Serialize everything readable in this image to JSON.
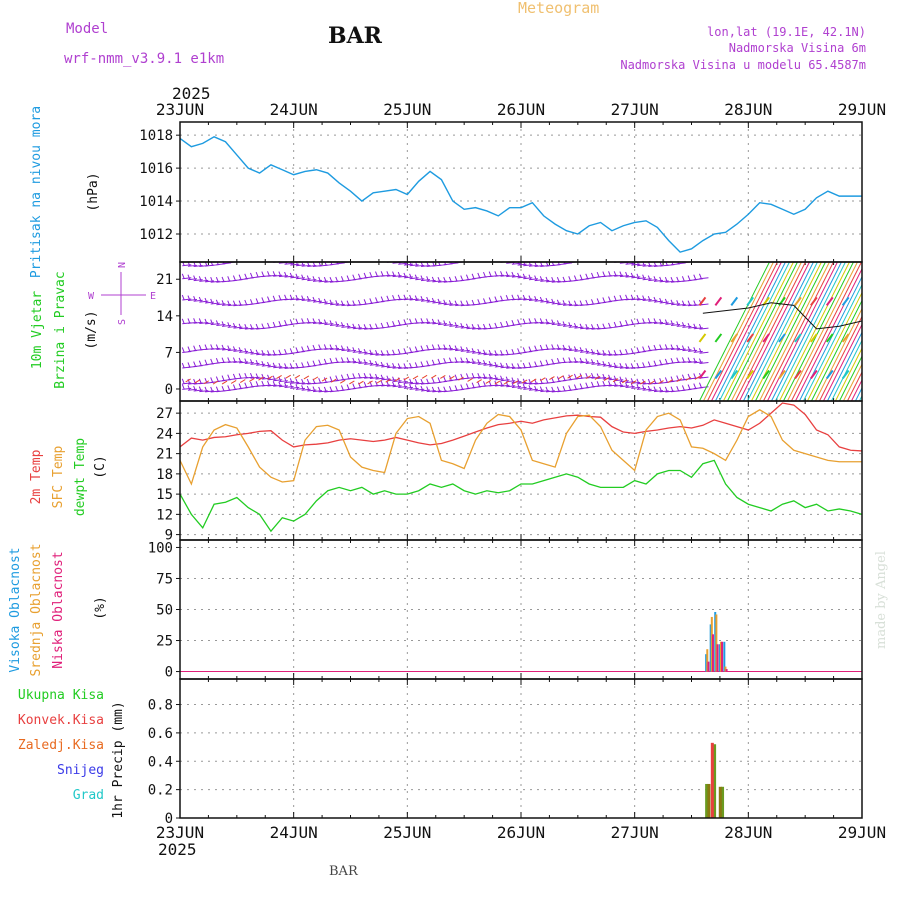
{
  "header": {
    "model_label": "Model",
    "model_name": "wrf-nmm_v3.9.1  e1km",
    "station": "BAR",
    "product": "Meteogram",
    "lonlat": "lon,lat (19.1E, 42.1N)",
    "elevation": "Nadmorska Visina 6m",
    "model_elevation": "Nadmorska Visina u modelu 65.4587m"
  },
  "footer": {
    "station": "BAR",
    "credit": "made by Angel"
  },
  "time_axis": {
    "year": "2025",
    "labels": [
      "23JUN",
      "24JUN",
      "25JUN",
      "26JUN",
      "27JUN",
      "28JUN",
      "29JUN"
    ]
  },
  "colors": {
    "pressure": "#1e9be0",
    "wind_barbs": "#8a1ed6",
    "wind_arrows": "#e8442c",
    "temp2m": "#e84040",
    "sfc_temp": "#e8a030",
    "dewpt": "#22cc22",
    "cloud_high": "#1e9be0",
    "cloud_mid": "#e8a030",
    "cloud_low": "#e0207a",
    "precip_total": "#22cc22",
    "precip_conv": "#e84040",
    "precip_frozen": "#e86a20",
    "snow": "#3a3ae8",
    "hail": "#20c8c8",
    "header_purple": "#b040d0",
    "meteogram_orange": "#f0c070"
  },
  "chart_data": [
    {
      "type": "line",
      "panel": "pressure",
      "ylabel_left": "Pritisak na nivou mora",
      "ylabel_unit": "(hPa)",
      "ylim": [
        1010.3,
        1018.8
      ],
      "yticks": [
        "1012",
        "1014",
        "1016",
        "1018"
      ],
      "grid": true,
      "series": [
        {
          "x": [
            0,
            0.1,
            0.2,
            0.3,
            0.4,
            0.5,
            0.6,
            0.7,
            0.8,
            0.9,
            1.0,
            1.1,
            1.2,
            1.3,
            1.4,
            1.5,
            1.6,
            1.7,
            1.8,
            1.9,
            2.0,
            2.1,
            2.2,
            2.3,
            2.4,
            2.5,
            2.6,
            2.7,
            2.8,
            2.9,
            3.0,
            3.1,
            3.2,
            3.3,
            3.4,
            3.5,
            3.6,
            3.7,
            3.8,
            3.9,
            4.0,
            4.1,
            4.2,
            4.3,
            4.4,
            4.5,
            4.6,
            4.7,
            4.8,
            4.9,
            5.0,
            5.1,
            5.2,
            5.3,
            5.4,
            5.5,
            5.6,
            5.7,
            5.8,
            5.9,
            6.0
          ],
          "y": [
            1017.8,
            1017.3,
            1017.5,
            1017.9,
            1017.6,
            1016.8,
            1016.0,
            1015.7,
            1016.2,
            1015.9,
            1015.6,
            1015.8,
            1015.9,
            1015.7,
            1015.1,
            1014.6,
            1014.0,
            1014.5,
            1014.6,
            1014.7,
            1014.4,
            1015.2,
            1015.8,
            1015.3,
            1014.0,
            1013.5,
            1013.6,
            1013.4,
            1013.1,
            1013.6,
            1013.6,
            1013.9,
            1013.1,
            1012.6,
            1012.2,
            1012.0,
            1012.5,
            1012.7,
            1012.2,
            1012.5,
            1012.7,
            1012.8,
            1012.4,
            1011.6,
            1010.9,
            1011.1,
            1011.6,
            1012.0,
            1012.1,
            1012.6,
            1013.2,
            1013.9,
            1013.8,
            1013.5,
            1013.2,
            1013.5,
            1014.2,
            1014.6,
            1014.3,
            1014.3,
            1014.3
          ]
        }
      ]
    },
    {
      "type": "wind",
      "panel": "wind",
      "ylabel_left": "10m Vjetar",
      "ylabel_left2": "Brzina i Pravac",
      "ylabel_unit": "(m/s)",
      "ylim": [
        -2.3,
        24.3
      ],
      "yticks": [
        "0",
        "7",
        "14",
        "21"
      ],
      "compass": {
        "n": "N",
        "s": "S",
        "e": "E",
        "w": "W"
      },
      "barb_rows_ms": [
        0,
        1.5,
        4.5,
        7,
        12,
        16.5,
        21,
        24
      ],
      "speed_series": {
        "x": [
          4.6,
          4.8,
          5.0,
          5.2,
          5.4,
          5.6,
          5.8,
          6.0
        ],
        "y": [
          14.5,
          15.0,
          15.5,
          16.5,
          16.0,
          11.5,
          12.0,
          13.0
        ]
      }
    },
    {
      "type": "line",
      "panel": "temperature",
      "ylabel_left": "2m Temp",
      "ylabel_left2": "SFC Temp",
      "ylabel_left3": "dewpt Temp",
      "ylabel_unit": "(C)",
      "ylim": [
        8.2,
        28.8
      ],
      "yticks": [
        "9",
        "12",
        "15",
        "18",
        "21",
        "24",
        "27"
      ],
      "grid": true,
      "series": [
        {
          "name": "2m Temp",
          "x": [
            0,
            0.1,
            0.2,
            0.3,
            0.4,
            0.5,
            0.6,
            0.7,
            0.8,
            0.9,
            1.0,
            1.1,
            1.2,
            1.3,
            1.4,
            1.5,
            1.6,
            1.7,
            1.8,
            1.9,
            2.0,
            2.1,
            2.2,
            2.3,
            2.4,
            2.5,
            2.6,
            2.7,
            2.8,
            2.9,
            3.0,
            3.1,
            3.2,
            3.3,
            3.4,
            3.5,
            3.6,
            3.7,
            3.8,
            3.9,
            4.0,
            4.1,
            4.2,
            4.3,
            4.4,
            4.5,
            4.6,
            4.7,
            4.8,
            4.9,
            5.0,
            5.1,
            5.2,
            5.3,
            5.4,
            5.5,
            5.6,
            5.7,
            5.8,
            5.9,
            6.0
          ],
          "y": [
            22.0,
            23.3,
            23.0,
            23.4,
            23.5,
            23.8,
            24.0,
            24.3,
            24.4,
            23.0,
            22.0,
            22.3,
            22.4,
            22.6,
            23.0,
            23.2,
            23.0,
            22.8,
            23.0,
            23.4,
            23.0,
            22.6,
            22.3,
            22.5,
            23.0,
            23.6,
            24.2,
            24.8,
            25.3,
            25.5,
            25.8,
            25.5,
            26.0,
            26.3,
            26.6,
            26.7,
            26.5,
            26.4,
            25.0,
            24.2,
            24.0,
            24.3,
            24.5,
            24.8,
            25.0,
            24.8,
            25.2,
            26.0,
            25.5,
            25.0,
            24.5,
            25.5,
            27.0,
            28.5,
            28.2,
            26.8,
            24.5,
            23.8,
            22.0,
            21.5,
            21.4
          ]
        },
        {
          "name": "SFC Temp",
          "x": [
            0,
            0.1,
            0.2,
            0.3,
            0.4,
            0.5,
            0.6,
            0.7,
            0.8,
            0.9,
            1.0,
            1.1,
            1.2,
            1.3,
            1.4,
            1.5,
            1.6,
            1.7,
            1.8,
            1.9,
            2.0,
            2.1,
            2.2,
            2.3,
            2.4,
            2.5,
            2.6,
            2.7,
            2.8,
            2.9,
            3.0,
            3.1,
            3.2,
            3.3,
            3.4,
            3.5,
            3.6,
            3.7,
            3.8,
            3.9,
            4.0,
            4.1,
            4.2,
            4.3,
            4.4,
            4.5,
            4.6,
            4.7,
            4.8,
            4.9,
            5.0,
            5.1,
            5.2,
            5.3,
            5.4,
            5.5,
            5.6,
            5.7,
            5.8,
            5.9,
            6.0
          ],
          "y": [
            20.0,
            16.5,
            22.0,
            24.5,
            25.3,
            24.8,
            22.0,
            19.0,
            17.5,
            16.8,
            17.0,
            23.0,
            25.0,
            25.2,
            24.5,
            20.5,
            19.0,
            18.5,
            18.2,
            24.0,
            26.2,
            26.5,
            25.5,
            20.0,
            19.5,
            18.8,
            23.0,
            25.5,
            26.8,
            26.5,
            24.5,
            20.0,
            19.5,
            19.0,
            24.0,
            26.5,
            26.7,
            25.0,
            21.5,
            20.0,
            18.5,
            24.5,
            26.5,
            27.0,
            26.0,
            22.0,
            21.8,
            21.0,
            20.0,
            23.0,
            26.5,
            27.5,
            26.5,
            23.0,
            21.5,
            21.0,
            20.5,
            20.0,
            19.8,
            19.8,
            19.8
          ]
        },
        {
          "name": "dewpt Temp",
          "x": [
            0,
            0.1,
            0.2,
            0.3,
            0.4,
            0.5,
            0.6,
            0.7,
            0.8,
            0.9,
            1.0,
            1.1,
            1.2,
            1.3,
            1.4,
            1.5,
            1.6,
            1.7,
            1.8,
            1.9,
            2.0,
            2.1,
            2.2,
            2.3,
            2.4,
            2.5,
            2.6,
            2.7,
            2.8,
            2.9,
            3.0,
            3.1,
            3.2,
            3.3,
            3.4,
            3.5,
            3.6,
            3.7,
            3.8,
            3.9,
            4.0,
            4.1,
            4.2,
            4.3,
            4.4,
            4.5,
            4.6,
            4.7,
            4.8,
            4.9,
            5.0,
            5.1,
            5.2,
            5.3,
            5.4,
            5.5,
            5.6,
            5.7,
            5.8,
            5.9,
            6.0
          ],
          "y": [
            15.0,
            12.0,
            10.0,
            13.5,
            13.8,
            14.5,
            13.0,
            12.0,
            9.5,
            11.5,
            11.0,
            12.0,
            14.0,
            15.5,
            16.0,
            15.5,
            16.0,
            15.0,
            15.5,
            15.0,
            15.0,
            15.5,
            16.5,
            16.0,
            16.5,
            15.5,
            15.0,
            15.5,
            15.2,
            15.5,
            16.5,
            16.5,
            17.0,
            17.5,
            18.0,
            17.5,
            16.5,
            16.0,
            16.0,
            16.0,
            17.0,
            16.5,
            18.0,
            18.5,
            18.5,
            17.5,
            19.5,
            20.0,
            16.5,
            14.5,
            13.5,
            13.0,
            12.5,
            13.5,
            14.0,
            13.0,
            13.5,
            12.5,
            12.8,
            12.5,
            12.0
          ]
        }
      ]
    },
    {
      "type": "bar",
      "panel": "clouds",
      "ylabel_left": "Visoka Oblacnost",
      "ylabel_left2": "Srednja Oblacnost",
      "ylabel_left3": "Niska Oblacnost",
      "ylabel_unit": "(%)",
      "ylim": [
        -6,
        106
      ],
      "yticks": [
        "0",
        "25",
        "50",
        "75",
        "100"
      ],
      "grid": true,
      "series": [
        {
          "name": "Visoka Oblacnost",
          "x": [
            4.62,
            4.66,
            4.7,
            4.74,
            4.78
          ],
          "values": [
            14,
            38,
            48,
            22,
            24
          ]
        },
        {
          "name": "Srednja Oblacnost",
          "x": [
            4.63,
            4.67,
            4.71,
            4.75,
            4.79
          ],
          "values": [
            18,
            44,
            46,
            24,
            4
          ]
        },
        {
          "name": "Niska Oblacnost",
          "x": [
            4.64,
            4.68,
            4.72,
            4.76,
            4.8
          ],
          "values": [
            8,
            30,
            22,
            24,
            2
          ]
        }
      ]
    },
    {
      "type": "bar",
      "panel": "precipitation",
      "ylabel_left": "Ukupna  Kisa",
      "ylabel_left2": "Konvek.Kisa",
      "ylabel_left3": "Zaledj.Kisa",
      "ylabel_left4": "Snijeg",
      "ylabel_left5": "Grad",
      "ylabel_unit": "1hr Precip (mm)",
      "ylim": [
        0,
        0.98
      ],
      "yticks": [
        "0",
        "0.2",
        "0.4",
        "0.6",
        "0.8"
      ],
      "grid": true,
      "series": [
        {
          "name": "Ukupna  Kisa",
          "x": [
            4.62,
            4.69,
            4.76
          ],
          "values": [
            0.24,
            0.52,
            0.22
          ]
        },
        {
          "name": "Konvek.Kisa",
          "x": [
            4.67
          ],
          "values": [
            0.53
          ]
        },
        {
          "name": "Zaledj.Kisa",
          "x": [
            4.64,
            4.74
          ],
          "values": [
            0.24,
            0.22
          ]
        }
      ]
    }
  ]
}
